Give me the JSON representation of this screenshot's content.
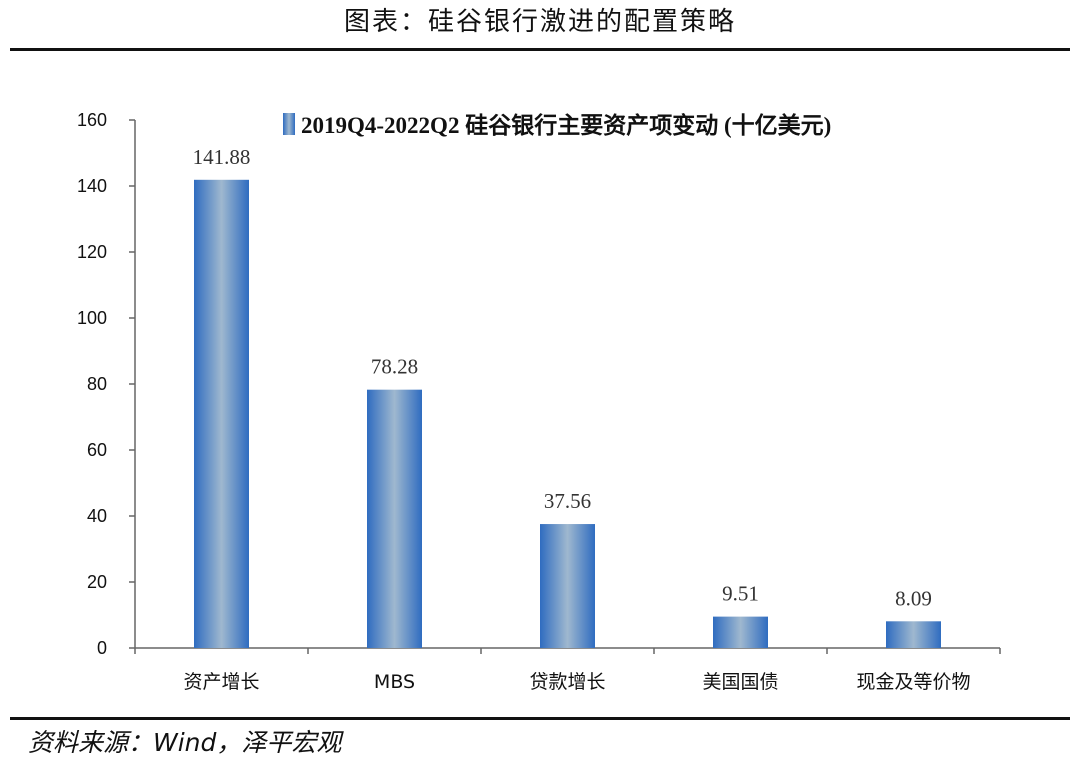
{
  "page": {
    "title": "图表：硅谷银行激进的配置策略",
    "source": "资料来源：Wind，泽平宏观"
  },
  "colors": {
    "bar_dark": "#2f6cc0",
    "bar_light": "#9fb8cf",
    "rule": "#111111"
  },
  "chart_data": {
    "type": "bar",
    "title": "",
    "categories": [
      "资产增长",
      "MBS",
      "贷款增长",
      "美国国债",
      "现金及等价物"
    ],
    "series": [
      {
        "name": "2019Q4-2022Q2 硅谷银行主要资产项变动 (十亿美元)",
        "values": [
          141.88,
          78.28,
          37.56,
          9.51,
          8.09
        ]
      }
    ],
    "data_labels": [
      "141.88",
      "78.28",
      "37.56",
      "9.51",
      "8.09"
    ],
    "yticks": [
      "0",
      "20",
      "40",
      "60",
      "80",
      "100",
      "120",
      "140",
      "160"
    ],
    "ylim": [
      0,
      160
    ],
    "xlabel": "",
    "ylabel": "",
    "grid": false,
    "legend_position": "top-center"
  }
}
